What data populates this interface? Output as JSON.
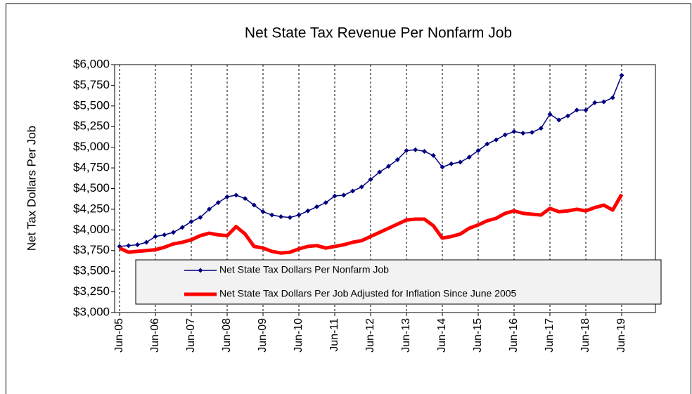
{
  "chart_data": {
    "type": "line",
    "title": "Net State Tax Revenue Per Nonfarm Job",
    "y_label": "Net Tax Dollars Per Job",
    "categories": [
      "Jun-05",
      null,
      null,
      null,
      "Jun-06",
      null,
      null,
      null,
      "Jun-07",
      null,
      null,
      null,
      "Jun-08",
      null,
      null,
      null,
      "Jun-09",
      null,
      null,
      null,
      "Jun-10",
      null,
      null,
      null,
      "Jun-11",
      null,
      null,
      null,
      "Jun-12",
      null,
      null,
      null,
      "Jun-13",
      null,
      null,
      null,
      "Jun-14",
      null,
      null,
      null,
      "Jun-15",
      null,
      null,
      null,
      "Jun-16",
      null,
      null,
      null,
      "Jun-17",
      null,
      null,
      null,
      "Jun-18",
      null,
      null,
      null,
      "Jun-19"
    ],
    "series": [
      {
        "name": "Net State Tax Dollars Per Nonfarm Job",
        "color": "#000080",
        "values": [
          3800,
          3810,
          3820,
          3850,
          3920,
          3940,
          3970,
          4030,
          4100,
          4150,
          4250,
          4330,
          4400,
          4420,
          4380,
          4300,
          4220,
          4180,
          4160,
          4150,
          4180,
          4230,
          4280,
          4330,
          4410,
          4420,
          4470,
          4520,
          4610,
          4700,
          4770,
          4850,
          4960,
          4970,
          4950,
          4900,
          4760,
          4800,
          4820,
          4880,
          4960,
          5040,
          5090,
          5150,
          5190,
          5170,
          5180,
          5230,
          5400,
          5330,
          5380,
          5450,
          5450,
          5540,
          5550,
          5600,
          5870
        ]
      },
      {
        "name": "Net State Tax Dollars Per Job Adjusted for Inflation Since June 2005",
        "color": "#ff0000",
        "values": [
          3780,
          3730,
          3740,
          3750,
          3760,
          3790,
          3830,
          3850,
          3880,
          3930,
          3960,
          3940,
          3930,
          4040,
          3950,
          3800,
          3780,
          3740,
          3720,
          3730,
          3770,
          3800,
          3810,
          3780,
          3800,
          3820,
          3850,
          3870,
          3920,
          3970,
          4020,
          4070,
          4120,
          4130,
          4130,
          4050,
          3900,
          3920,
          3950,
          4020,
          4060,
          4110,
          4140,
          4200,
          4230,
          4200,
          4190,
          4180,
          4260,
          4220,
          4230,
          4250,
          4230,
          4270,
          4300,
          4240,
          4430
        ]
      }
    ],
    "ylim": [
      3000,
      6000
    ],
    "yticks": [
      {
        "value": 3000,
        "label": "$3,000"
      },
      {
        "value": 3250,
        "label": "$3,250"
      },
      {
        "value": 3500,
        "label": "$3,500"
      },
      {
        "value": 3750,
        "label": "$3,750"
      },
      {
        "value": 4000,
        "label": "$4,000"
      },
      {
        "value": 4250,
        "label": "$4,250"
      },
      {
        "value": 4500,
        "label": "$4,500"
      },
      {
        "value": 4750,
        "label": "$4,750"
      },
      {
        "value": 5000,
        "label": "$5,000"
      },
      {
        "value": 5250,
        "label": "$5,250"
      },
      {
        "value": 5500,
        "label": "$5,500"
      },
      {
        "value": 5750,
        "label": "$5,750"
      },
      {
        "value": 6000,
        "label": "$6,000"
      }
    ],
    "grid": true
  }
}
